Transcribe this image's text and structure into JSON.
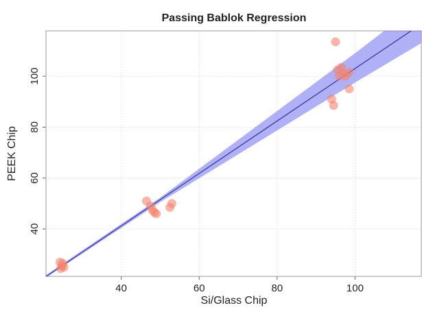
{
  "chart_data": {
    "type": "scatter",
    "title": "Passing Bablok Regression",
    "xlabel": "Si/Glass Chip",
    "ylabel": "PEEK Chip",
    "x": [
      24.5,
      24.8,
      25.0,
      24.3,
      25.3,
      46.5,
      47.5,
      48.0,
      48.5,
      49.0,
      53.0,
      52.5,
      95.0,
      95.5,
      96.5,
      97.0,
      96.0,
      97.5,
      98.5,
      94.0,
      94.5,
      98.5
    ],
    "y": [
      24.5,
      25.5,
      26.5,
      27.0,
      25.0,
      51.0,
      49.0,
      47.5,
      46.5,
      46.0,
      50.0,
      48.5,
      113.5,
      102.5,
      103.5,
      101.0,
      100.0,
      100.0,
      101.5,
      91.0,
      88.5,
      95.0
    ],
    "point_color": "#f4846e",
    "fit": {
      "x": [
        20.7,
        50,
        100,
        117
      ],
      "line": [
        21.3,
        51.5,
        103,
        120.5
      ],
      "lower": [
        20.9,
        50.5,
        97.5,
        113
      ],
      "upper": [
        21.9,
        52.3,
        109,
        129
      ],
      "line_color": "#3a3aa0",
      "band_color": "#7b7bf2"
    },
    "xlim": [
      20.7,
      117
    ],
    "ylim": [
      21.4,
      117.8
    ],
    "xticks": [
      40,
      60,
      80,
      100
    ],
    "yticks": [
      40,
      60,
      80,
      100
    ],
    "grid": true
  }
}
